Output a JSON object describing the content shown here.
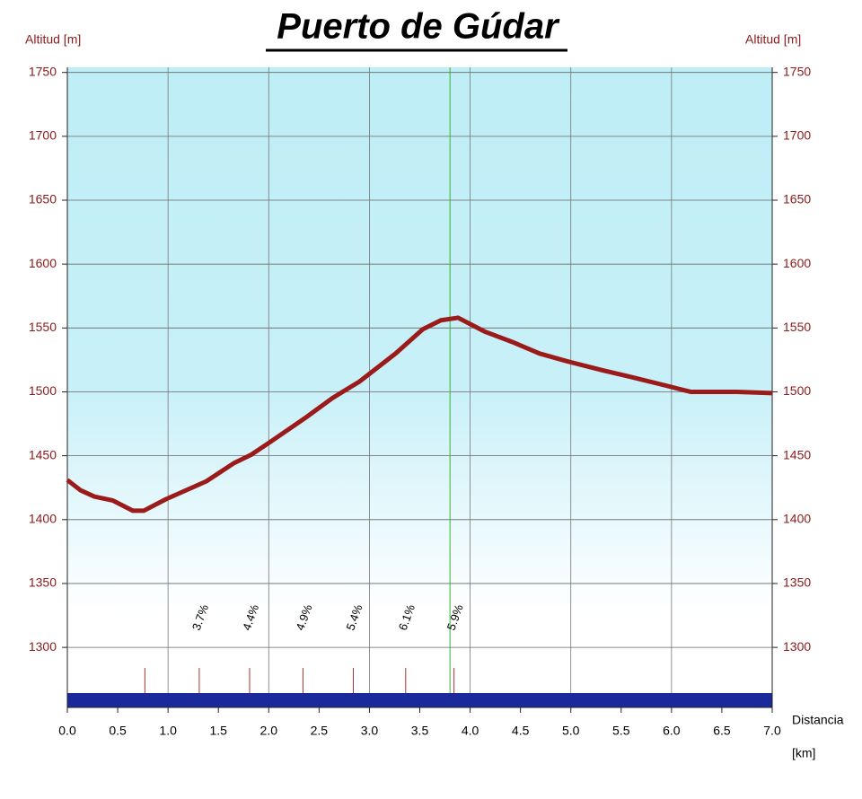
{
  "chart_data": {
    "type": "line",
    "title": "Puerto de Gúdar",
    "y_label_left": "Altitud [m]",
    "y_label_right": "Altitud [m]",
    "x_label": "Distancia",
    "x_unit": "[km]",
    "x": [
      0,
      0.13,
      0.27,
      0.45,
      0.65,
      0.76,
      0.98,
      1.38,
      1.65,
      1.83,
      2.0,
      2.37,
      2.63,
      2.9,
      3.26,
      3.53,
      3.71,
      3.88,
      4.15,
      4.42,
      4.69,
      4.96,
      5.31,
      5.58,
      5.94,
      6.19,
      6.65,
      7.0
    ],
    "values": [
      1431,
      1423,
      1418,
      1415,
      1407,
      1407,
      1416,
      1430,
      1444,
      1451,
      1460,
      1480,
      1495,
      1508,
      1530,
      1549,
      1556,
      1558,
      1547,
      1539,
      1530,
      1524,
      1517,
      1512,
      1505,
      1500,
      1500,
      1499
    ],
    "color": "#9b1b1b",
    "xlim": [
      0,
      7
    ],
    "xticks": [
      {
        "value": 0,
        "label": "0.0"
      },
      {
        "value": 0.5,
        "label": "0.5"
      },
      {
        "value": 1,
        "label": "1.0"
      },
      {
        "value": 1.5,
        "label": "1.5"
      },
      {
        "value": 2,
        "label": "2.0"
      },
      {
        "value": 2.5,
        "label": "2.5"
      },
      {
        "value": 3,
        "label": "3.0"
      },
      {
        "value": 3.5,
        "label": "3.5"
      },
      {
        "value": 4,
        "label": "4.0"
      },
      {
        "value": 4.5,
        "label": "4.5"
      },
      {
        "value": 5,
        "label": "5.0"
      },
      {
        "value": 5.5,
        "label": "5.5"
      },
      {
        "value": 6,
        "label": "6.0"
      },
      {
        "value": 6.5,
        "label": "6.5"
      },
      {
        "value": 7,
        "label": "7.0"
      }
    ],
    "ylim": [
      1253,
      1754
    ],
    "yticks": [
      1300,
      1350,
      1400,
      1450,
      1500,
      1550,
      1600,
      1650,
      1700,
      1750
    ],
    "grid": true,
    "grade_marks": [
      0.77,
      1.31,
      1.81,
      2.34,
      2.84,
      3.36,
      3.84
    ],
    "grade_labels": [
      null,
      "3.7%",
      "4.4%",
      "4.9%",
      "5.4%",
      "6.1%",
      "5.9%"
    ],
    "summit_line": 3.8
  }
}
